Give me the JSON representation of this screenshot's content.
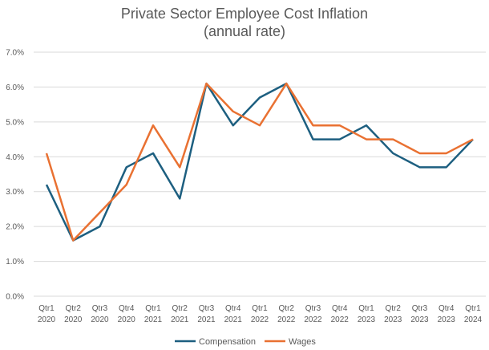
{
  "chart_data": {
    "type": "line",
    "title": "Private Sector Employee Cost Inflation",
    "subtitle": "(annual rate)",
    "categories": [
      [
        "Qtr1",
        "2020"
      ],
      [
        "Qtr2",
        "2020"
      ],
      [
        "Qtr3",
        "2020"
      ],
      [
        "Qtr4",
        "2020"
      ],
      [
        "Qtr1",
        "2021"
      ],
      [
        "Qtr2",
        "2021"
      ],
      [
        "Qtr3",
        "2021"
      ],
      [
        "Qtr4",
        "2021"
      ],
      [
        "Qtr1",
        "2022"
      ],
      [
        "Qtr2",
        "2022"
      ],
      [
        "Qtr3",
        "2022"
      ],
      [
        "Qtr4",
        "2022"
      ],
      [
        "Qtr1",
        "2023"
      ],
      [
        "Qtr2",
        "2023"
      ],
      [
        "Qtr3",
        "2023"
      ],
      [
        "Qtr4",
        "2023"
      ],
      [
        "Qtr1",
        "2024"
      ]
    ],
    "series": [
      {
        "name": "Compensation",
        "color": "#1d5f80",
        "values": [
          3.2,
          1.6,
          2.0,
          3.7,
          4.1,
          2.8,
          6.1,
          4.9,
          5.7,
          6.1,
          4.5,
          4.5,
          4.9,
          4.1,
          3.7,
          3.7,
          4.5
        ]
      },
      {
        "name": "Wages",
        "color": "#e97132",
        "values": [
          4.1,
          1.6,
          2.4,
          3.2,
          4.9,
          3.7,
          6.1,
          5.3,
          4.9,
          6.1,
          4.9,
          4.9,
          4.5,
          4.5,
          4.1,
          4.1,
          4.5
        ]
      }
    ],
    "ylim": [
      0,
      7
    ],
    "yticks": [
      "0.0%",
      "1.0%",
      "2.0%",
      "3.0%",
      "4.0%",
      "5.0%",
      "6.0%",
      "7.0%"
    ],
    "grid": true,
    "legend": "bottom"
  }
}
